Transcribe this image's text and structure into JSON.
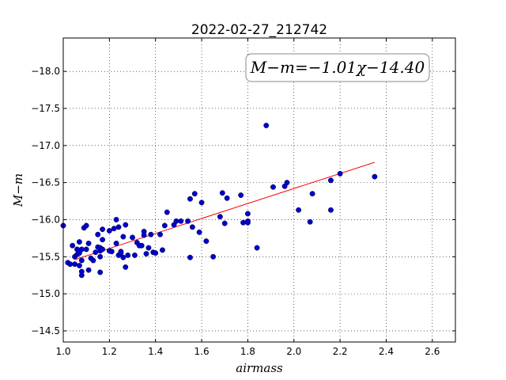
{
  "chart_data": {
    "type": "scatter",
    "title": "2022-02-27_212742",
    "xlabel": "airmass",
    "ylabel": "M−m",
    "xlim": [
      1.0,
      2.7
    ],
    "ylim": [
      -18.45,
      -14.35
    ],
    "y_inverted": true,
    "grid": true,
    "x_ticks": [
      1.0,
      1.2,
      1.4,
      1.6,
      1.8,
      2.0,
      2.2,
      2.4,
      2.6
    ],
    "x_tick_labels": [
      "1.0",
      "1.2",
      "1.4",
      "1.6",
      "1.8",
      "2.0",
      "2.2",
      "2.4",
      "2.6"
    ],
    "y_ticks": [
      -14.5,
      -15.0,
      -15.5,
      -16.0,
      -16.5,
      -17.0,
      -17.5,
      -18.0
    ],
    "y_tick_labels": [
      "−14.5",
      "−15.0",
      "−15.5",
      "−16.0",
      "−16.5",
      "−17.0",
      "−17.5",
      "−18.0"
    ],
    "annotation": "M−m=−1.01χ−14.40",
    "annotation_position": "top-right",
    "marker_color": "#0000cc",
    "fit_color": "#ff0000",
    "fit_line": {
      "slope": -1.01,
      "intercept": -14.4,
      "x_range": [
        1.05,
        2.35
      ]
    },
    "points": {
      "x": [
        1.0,
        1.02,
        1.03,
        1.04,
        1.05,
        1.05,
        1.06,
        1.06,
        1.07,
        1.07,
        1.07,
        1.08,
        1.08,
        1.08,
        1.08,
        1.09,
        1.1,
        1.1,
        1.11,
        1.11,
        1.12,
        1.13,
        1.14,
        1.15,
        1.15,
        1.16,
        1.16,
        1.16,
        1.16,
        1.17,
        1.17,
        1.17,
        1.2,
        1.2,
        1.21,
        1.22,
        1.23,
        1.23,
        1.24,
        1.24,
        1.25,
        1.25,
        1.26,
        1.26,
        1.27,
        1.27,
        1.28,
        1.3,
        1.31,
        1.32,
        1.33,
        1.34,
        1.35,
        1.35,
        1.36,
        1.37,
        1.38,
        1.39,
        1.4,
        1.42,
        1.43,
        1.44,
        1.45,
        1.48,
        1.49,
        1.51,
        1.54,
        1.55,
        1.55,
        1.56,
        1.57,
        1.59,
        1.6,
        1.62,
        1.65,
        1.68,
        1.69,
        1.7,
        1.71,
        1.77,
        1.78,
        1.8,
        1.8,
        1.8,
        1.84,
        1.88,
        1.91,
        1.96,
        1.97,
        2.02,
        2.07,
        2.08,
        2.16,
        2.16,
        2.2,
        2.35
      ],
      "y": [
        -15.92,
        -15.42,
        -15.4,
        -15.65,
        -15.4,
        -15.5,
        -15.53,
        -15.6,
        -15.38,
        -15.55,
        -15.7,
        -15.25,
        -15.3,
        -15.6,
        -15.45,
        -15.89,
        -15.6,
        -15.92,
        -15.32,
        -15.68,
        -15.48,
        -15.45,
        -15.56,
        -15.8,
        -15.63,
        -15.29,
        -15.5,
        -15.58,
        -15.62,
        -15.6,
        -15.87,
        -15.73,
        -15.85,
        -15.58,
        -15.57,
        -15.88,
        -15.68,
        -16.0,
        -15.52,
        -15.9,
        -15.55,
        -15.57,
        -15.49,
        -15.77,
        -15.36,
        -15.93,
        -15.52,
        -15.76,
        -15.52,
        -15.69,
        -15.65,
        -15.65,
        -15.84,
        -15.79,
        -15.54,
        -15.62,
        -15.8,
        -15.56,
        -15.55,
        -15.8,
        -15.59,
        -15.92,
        -16.1,
        -15.93,
        -15.98,
        -15.98,
        -15.98,
        -16.28,
        -15.49,
        -15.9,
        -16.35,
        -15.83,
        -16.23,
        -15.71,
        -15.5,
        -16.04,
        -16.36,
        -15.95,
        -16.29,
        -16.33,
        -15.96,
        -15.98,
        -16.08,
        -15.96,
        -15.62,
        -17.27,
        -16.44,
        -16.45,
        -16.5,
        -16.13,
        -15.97,
        -16.35,
        -16.13,
        -16.53,
        -16.62,
        -16.58
      ]
    }
  }
}
